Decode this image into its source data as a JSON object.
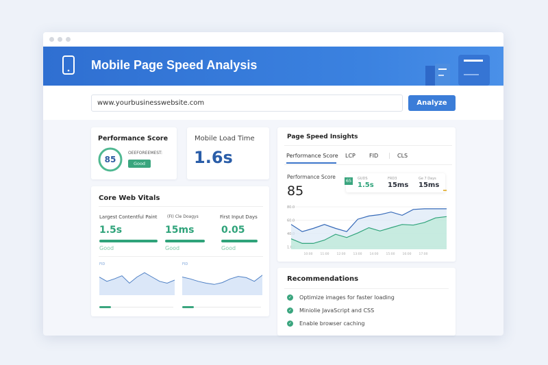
{
  "header": {
    "title": "Mobile Page Speed Analysis",
    "icon": "mobile-phone-icon"
  },
  "search": {
    "value": "www.yourbusinesswebsite.com",
    "button": "Analyze"
  },
  "performance": {
    "title": "Performance Score",
    "score": "85",
    "score_fraction": 0.85,
    "label": "OEEFOREEMEST:",
    "badge": "Good"
  },
  "load_time": {
    "title": "Mobile Load Time",
    "value": "1.6s"
  },
  "core_web_vitals": {
    "title": "Core Web Vitals",
    "metrics": [
      {
        "label": "Largest Contentful Paint",
        "value": "1.5s",
        "status": "Good"
      },
      {
        "label": "(FI) Cle Doagys",
        "value": "15ms",
        "status": "Good"
      },
      {
        "label": "First Input Days",
        "value": "0.05",
        "status": "Good"
      }
    ],
    "mini_charts": [
      {
        "label": "FID",
        "values": [
          55,
          48,
          52,
          57,
          45,
          55,
          62,
          55,
          48,
          45,
          50
        ]
      },
      {
        "label": "FID",
        "values": [
          55,
          52,
          48,
          45,
          43,
          46,
          52,
          56,
          54,
          48,
          58
        ]
      }
    ]
  },
  "insights": {
    "title": "Page Speed Insights",
    "tabs": [
      "Performance Score",
      "LCP",
      "FID",
      "CLS"
    ],
    "active_tab": 0,
    "score_label": "Performance Score",
    "score": "85",
    "tooltip": {
      "badge": "65",
      "items": [
        {
          "label": "GUDS",
          "value": "1.5s"
        },
        {
          "label": "FRD3",
          "value": "15ms"
        },
        {
          "label": "Ge 7 Days",
          "value": "15ms"
        }
      ]
    }
  },
  "chart_data": {
    "type": "area",
    "y_ticks": [
      "80.0",
      "60.0",
      "40.0",
      "1.00"
    ],
    "ylim": [
      20,
      85
    ],
    "x_ticks": [
      "10:00",
      "11:00",
      "12:00",
      "13:00",
      "14:00",
      "15:00",
      "16:00",
      "17:00"
    ],
    "series": [
      {
        "values": [
          58,
          47,
          52,
          58,
          52,
          47,
          66,
          71,
          73,
          77,
          72,
          81,
          82,
          82,
          82
        ],
        "color": "#3569b8"
      },
      {
        "values": [
          36,
          29,
          29,
          34,
          43,
          38,
          45,
          53,
          48,
          53,
          58,
          57,
          61,
          68,
          70
        ],
        "color": "#2fa37a"
      }
    ]
  },
  "recommendations": {
    "title": "Recommendations",
    "items": [
      "Optimize images for faster loading",
      "Miniolie JavaScript and CSS",
      "Enable browser caching"
    ]
  }
}
